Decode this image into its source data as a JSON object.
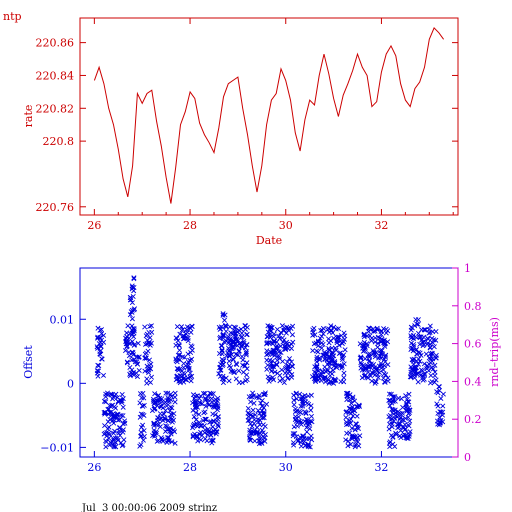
{
  "chart_data": [
    {
      "type": "line",
      "title": "ntp",
      "xlabel": "Date",
      "ylabel": "rate",
      "xlim": [
        25.7,
        33.6
      ],
      "ylim": [
        220.755,
        220.875
      ],
      "x_ticks": [
        26,
        28,
        30,
        32
      ],
      "y_ticks": [
        220.76,
        220.8,
        220.82,
        220.84,
        220.86
      ],
      "y_tick_labels": [
        "220.76",
        "220.8",
        "220.82",
        "220.84",
        "220.86"
      ],
      "grid": false,
      "color": "#cc0000",
      "series": [
        {
          "x": [
            26.0,
            26.1,
            26.2,
            26.3,
            26.4,
            26.5,
            26.6,
            26.7,
            26.8,
            26.9,
            27.0,
            27.1,
            27.2,
            27.3,
            27.4,
            27.5,
            27.6,
            27.7,
            27.8,
            27.9,
            28.0,
            28.1,
            28.2,
            28.3,
            28.4,
            28.5,
            28.6,
            28.7,
            28.8,
            28.9,
            29.0,
            29.1,
            29.2,
            29.3,
            29.4,
            29.5,
            29.6,
            29.7,
            29.8,
            29.9,
            30.0,
            30.1,
            30.2,
            30.3,
            30.4,
            30.5,
            30.6,
            30.7,
            30.8,
            30.9,
            31.0,
            31.1,
            31.2,
            31.3,
            31.4,
            31.5,
            31.6,
            31.7,
            31.8,
            31.9,
            32.0,
            32.1,
            32.2,
            32.3,
            32.4,
            32.5,
            32.6,
            32.7,
            32.8,
            32.9,
            33.0,
            33.1,
            33.2,
            33.3
          ],
          "y": [
            220.837,
            220.845,
            220.835,
            220.82,
            220.81,
            220.795,
            220.777,
            220.766,
            220.785,
            220.829,
            220.823,
            220.829,
            220.831,
            220.812,
            220.797,
            220.778,
            220.762,
            220.784,
            220.81,
            220.818,
            220.83,
            220.826,
            220.811,
            220.804,
            220.799,
            220.793,
            220.808,
            220.827,
            220.835,
            220.837,
            220.839,
            220.82,
            220.804,
            220.785,
            220.769,
            220.785,
            220.81,
            220.825,
            220.829,
            220.844,
            220.837,
            220.825,
            220.805,
            220.794,
            220.813,
            220.825,
            220.822,
            220.84,
            220.853,
            220.841,
            220.826,
            220.815,
            220.828,
            220.835,
            220.843,
            220.853,
            220.845,
            220.84,
            220.821,
            220.824,
            220.842,
            220.853,
            220.858,
            220.852,
            220.835,
            220.825,
            220.821,
            220.832,
            220.836,
            220.845,
            220.862,
            220.869,
            220.866,
            220.862
          ]
        }
      ]
    },
    {
      "type": "scatter",
      "xlabel": "",
      "ylabel": "Offset",
      "y2label": "rnd–trip(ms)",
      "xlim": [
        25.7,
        33.6
      ],
      "ylim": [
        -0.0115,
        0.018
      ],
      "y2lim": [
        0,
        1
      ],
      "x_ticks": [
        26,
        28,
        30,
        32
      ],
      "y_ticks": [
        -0.01,
        0,
        0.01
      ],
      "y_tick_labels": [
        "−0.01",
        "0",
        "0.01"
      ],
      "y2_ticks": [
        0,
        0.2,
        0.4,
        0.6,
        0.8,
        1
      ],
      "y2_tick_labels": [
        "0",
        "0.2",
        "0.4",
        "0.6",
        "0.8",
        "1"
      ],
      "grid": false,
      "marker": "x",
      "color": "#0000dd",
      "axis2_color": "#cc00cc",
      "clusters": [
        {
          "x": [
            26.05,
            26.2
          ],
          "y": [
            0.001,
            0.009
          ]
        },
        {
          "x": [
            26.2,
            26.65
          ],
          "y": [
            -0.01,
            -0.0015
          ]
        },
        {
          "x": [
            26.65,
            26.95
          ],
          "y": [
            0.001,
            0.009
          ]
        },
        {
          "x": [
            26.75,
            26.85
          ],
          "y": [
            0.009,
            0.017
          ]
        },
        {
          "x": [
            26.95,
            27.05
          ],
          "y": [
            -0.01,
            -0.0015
          ]
        },
        {
          "x": [
            27.05,
            27.2
          ],
          "y": [
            0.0,
            0.009
          ]
        },
        {
          "x": [
            27.2,
            27.7
          ],
          "y": [
            -0.0095,
            -0.0015
          ]
        },
        {
          "x": [
            27.7,
            28.05
          ],
          "y": [
            0.0,
            0.009
          ]
        },
        {
          "x": [
            28.05,
            28.6
          ],
          "y": [
            -0.0095,
            -0.0015
          ]
        },
        {
          "x": [
            28.6,
            29.2
          ],
          "y": [
            0.0,
            0.009
          ]
        },
        {
          "x": [
            28.65,
            28.75
          ],
          "y": [
            0.009,
            0.011
          ]
        },
        {
          "x": [
            29.2,
            29.6
          ],
          "y": [
            -0.0095,
            -0.0015
          ]
        },
        {
          "x": [
            29.6,
            30.15
          ],
          "y": [
            0.0,
            0.009
          ]
        },
        {
          "x": [
            30.15,
            30.55
          ],
          "y": [
            -0.01,
            -0.0015
          ]
        },
        {
          "x": [
            30.55,
            31.25
          ],
          "y": [
            0.0,
            0.009
          ]
        },
        {
          "x": [
            31.25,
            31.55
          ],
          "y": [
            -0.01,
            -0.0015
          ]
        },
        {
          "x": [
            31.55,
            32.15
          ],
          "y": [
            0.0,
            0.009
          ]
        },
        {
          "x": [
            32.15,
            32.6
          ],
          "y": [
            -0.01,
            -0.0015
          ]
        },
        {
          "x": [
            32.6,
            33.15
          ],
          "y": [
            0.0,
            0.009
          ]
        },
        {
          "x": [
            32.7,
            32.8
          ],
          "y": [
            0.009,
            0.01
          ]
        },
        {
          "x": [
            33.15,
            33.3
          ],
          "y": [
            -0.0065,
            0.0
          ]
        }
      ]
    }
  ],
  "footer": {
    "text": "Jul  3 00:00:06 2009 strinz"
  }
}
